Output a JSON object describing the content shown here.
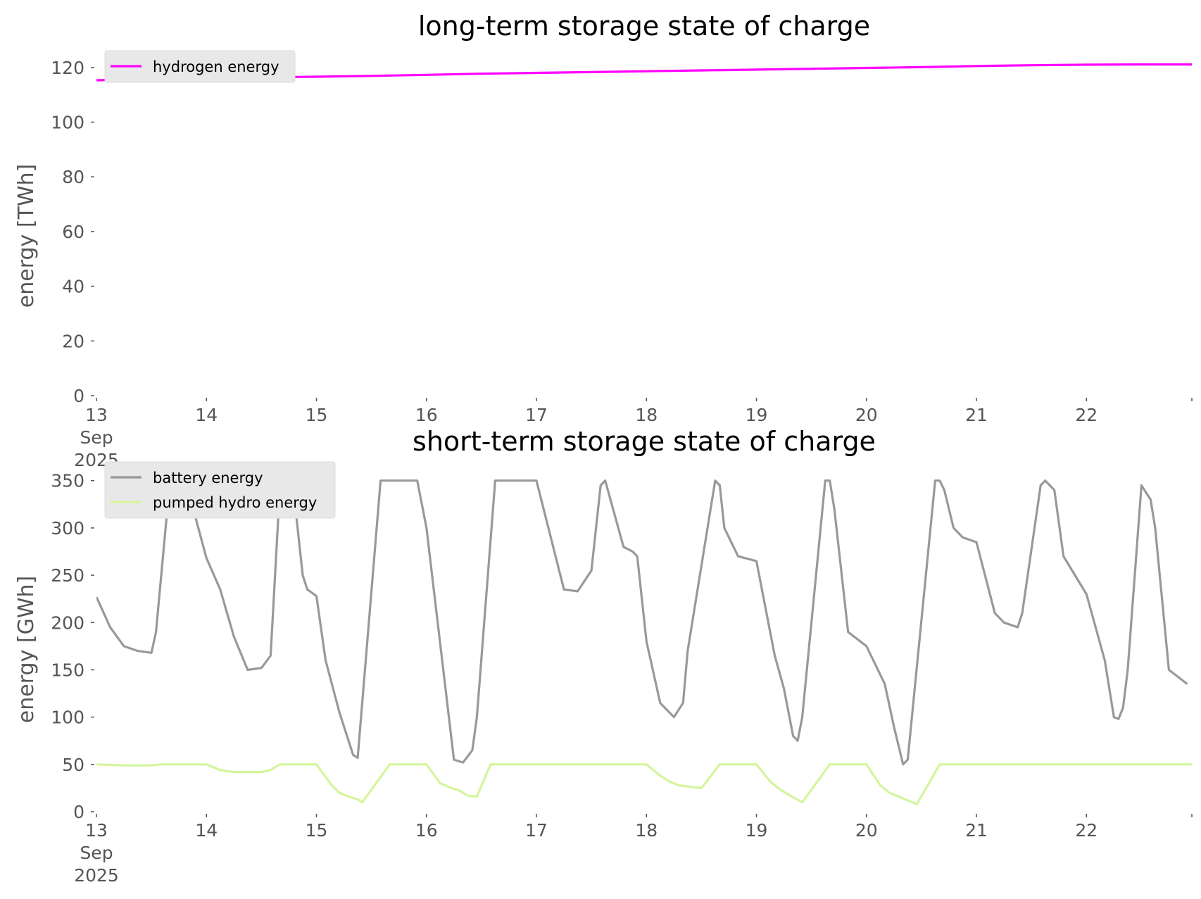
{
  "chart_data": [
    {
      "type": "line",
      "title": "long-term storage state of charge",
      "ylabel": "energy [TWh]",
      "xlabel": "",
      "ylim": [
        0,
        122
      ],
      "yticks": [
        "0",
        "20",
        "40",
        "60",
        "80",
        "100",
        "120"
      ],
      "xlim": [
        "2025-09-13",
        "2025-09-22 23:00"
      ],
      "xticks": [
        "13\nSep\n2025",
        "14",
        "15",
        "16",
        "17",
        "18",
        "19",
        "20",
        "21",
        "22"
      ],
      "grid": false,
      "legend": "top-left",
      "series": [
        {
          "name": "hydrogen energy",
          "color": "#ff00ff",
          "x": [
            "2025-09-13",
            "2025-09-13 12:00",
            "2025-09-14",
            "2025-09-14 12:00",
            "2025-09-15",
            "2025-09-15 12:00",
            "2025-09-16",
            "2025-09-16 12:00",
            "2025-09-17",
            "2025-09-17 12:00",
            "2025-09-18",
            "2025-09-18 12:00",
            "2025-09-19",
            "2025-09-19 12:00",
            "2025-09-20",
            "2025-09-20 12:00",
            "2025-09-21",
            "2025-09-21 12:00",
            "2025-09-22",
            "2025-09-22 12:00",
            "2025-09-22 23:00"
          ],
          "values": [
            115.3,
            115.8,
            116.2,
            116.4,
            116.6,
            116.9,
            117.3,
            117.7,
            118.0,
            118.3,
            118.6,
            118.9,
            119.2,
            119.5,
            119.8,
            120.1,
            120.5,
            120.8,
            121.0,
            121.1,
            121.1
          ]
        }
      ]
    },
    {
      "type": "line",
      "title": "short-term storage state of charge",
      "ylabel": "energy [GWh]",
      "xlabel": "",
      "ylim": [
        0,
        358
      ],
      "yticks": [
        "0",
        "50",
        "100",
        "150",
        "200",
        "250",
        "300",
        "350"
      ],
      "xlim": [
        "2025-09-13",
        "2025-09-22 23:00"
      ],
      "xticks": [
        "13\nSep\n2025",
        "14",
        "15",
        "16",
        "17",
        "18",
        "19",
        "20",
        "21",
        "22"
      ],
      "grid": false,
      "legend": "top-left",
      "series": [
        {
          "name": "battery energy",
          "color": "#999999",
          "x": [
            "2025-09-13",
            "2025-09-13 03:00",
            "2025-09-13 06:00",
            "2025-09-13 09:00",
            "2025-09-13 12:00",
            "2025-09-13 13:00",
            "2025-09-13 16:00",
            "2025-09-13 18:00",
            "2025-09-13 20:00",
            "2025-09-14",
            "2025-09-14 03:00",
            "2025-09-14 06:00",
            "2025-09-14 09:00",
            "2025-09-14 12:00",
            "2025-09-14 14:00",
            "2025-09-14 16:00",
            "2025-09-14 17:00",
            "2025-09-14 19:00",
            "2025-09-14 21:00",
            "2025-09-14 22:00",
            "2025-09-15",
            "2025-09-15 02:00",
            "2025-09-15 05:00",
            "2025-09-15 08:00",
            "2025-09-15 09:00",
            "2025-09-15 14:00",
            "2025-09-15 15:00",
            "2025-09-15 22:00",
            "2025-09-16",
            "2025-09-16 06:00",
            "2025-09-16 08:00",
            "2025-09-16 10:00",
            "2025-09-16 11:00",
            "2025-09-16 15:00",
            "2025-09-16 17:00",
            "2025-09-16 22:00",
            "2025-09-17",
            "2025-09-17 06:00",
            "2025-09-17 09:00",
            "2025-09-17 12:00",
            "2025-09-17 14:00",
            "2025-09-17 15:00",
            "2025-09-17 19:00",
            "2025-09-17 21:00",
            "2025-09-17 22:00",
            "2025-09-18",
            "2025-09-18 03:00",
            "2025-09-18 06:00",
            "2025-09-18 08:00",
            "2025-09-18 09:00",
            "2025-09-18 15:00",
            "2025-09-18 16:00",
            "2025-09-18 17:00",
            "2025-09-18 20:00",
            "2025-09-19",
            "2025-09-19 04:00",
            "2025-09-19 06:00",
            "2025-09-19 08:00",
            "2025-09-19 09:00",
            "2025-09-19 10:00",
            "2025-09-19 15:00",
            "2025-09-19 16:00",
            "2025-09-19 17:00",
            "2025-09-19 20:00",
            "2025-09-20",
            "2025-09-20 04:00",
            "2025-09-20 06:00",
            "2025-09-20 08:00",
            "2025-09-20 09:00",
            "2025-09-20 15:00",
            "2025-09-20 16:00",
            "2025-09-20 17:00",
            "2025-09-20 19:00",
            "2025-09-20 21:00",
            "2025-09-21",
            "2025-09-21 04:00",
            "2025-09-21 06:00",
            "2025-09-21 09:00",
            "2025-09-21 10:00",
            "2025-09-21 14:00",
            "2025-09-21 15:00",
            "2025-09-21 17:00",
            "2025-09-21 19:00",
            "2025-09-22",
            "2025-09-22 04:00",
            "2025-09-22 06:00",
            "2025-09-22 07:00",
            "2025-09-22 08:00",
            "2025-09-22 09:00",
            "2025-09-22 12:00",
            "2025-09-22 14:00",
            "2025-09-22 15:00",
            "2025-09-22 18:00",
            "2025-09-22 22:00"
          ],
          "values": [
            227,
            195,
            175,
            170,
            168,
            190,
            348,
            350,
            340,
            268,
            235,
            185,
            150,
            152,
            165,
            340,
            350,
            340,
            250,
            235,
            228,
            160,
            105,
            60,
            57,
            350,
            350,
            350,
            300,
            55,
            52,
            65,
            100,
            350,
            350,
            350,
            350,
            235,
            233,
            255,
            345,
            350,
            280,
            275,
            270,
            180,
            115,
            100,
            115,
            170,
            350,
            345,
            300,
            270,
            265,
            165,
            130,
            80,
            75,
            100,
            350,
            350,
            320,
            190,
            175,
            135,
            90,
            50,
            55,
            350,
            350,
            340,
            300,
            290,
            285,
            210,
            200,
            195,
            210,
            345,
            350,
            340,
            270,
            230,
            160,
            100,
            98,
            110,
            150,
            345,
            330,
            300,
            150,
            135
          ]
        },
        {
          "name": "pumped hydro energy",
          "color": "#d4f59c",
          "x": [
            "2025-09-13",
            "2025-09-13 06:00",
            "2025-09-13 12:00",
            "2025-09-13 14:00",
            "2025-09-14",
            "2025-09-14 03:00",
            "2025-09-14 06:00",
            "2025-09-14 12:00",
            "2025-09-14 14:00",
            "2025-09-14 16:00",
            "2025-09-15",
            "2025-09-15 03:00",
            "2025-09-15 05:00",
            "2025-09-15 07:00",
            "2025-09-15 09:00",
            "2025-09-15 10:00",
            "2025-09-15 16:00",
            "2025-09-16",
            "2025-09-16 03:00",
            "2025-09-16 06:00",
            "2025-09-16 07:00",
            "2025-09-16 09:00",
            "2025-09-16 11:00",
            "2025-09-16 14:00",
            "2025-09-17",
            "2025-09-18",
            "2025-09-18 03:00",
            "2025-09-18 05:00",
            "2025-09-18 07:00",
            "2025-09-18 10:00",
            "2025-09-18 12:00",
            "2025-09-18 16:00",
            "2025-09-19",
            "2025-09-19 03:00",
            "2025-09-19 05:00",
            "2025-09-19 07:00",
            "2025-09-19 10:00",
            "2025-09-19 16:00",
            "2025-09-20",
            "2025-09-20 03:00",
            "2025-09-20 05:00",
            "2025-09-20 07:00",
            "2025-09-20 09:00",
            "2025-09-20 11:00",
            "2025-09-20 16:00",
            "2025-09-21",
            "2025-09-22",
            "2025-09-22 12:00",
            "2025-09-22 23:00"
          ],
          "values": [
            50,
            49,
            49,
            50,
            50,
            44,
            42,
            42,
            44,
            50,
            50,
            30,
            20,
            16,
            13,
            10,
            50,
            50,
            30,
            24,
            23,
            17,
            16,
            50,
            50,
            50,
            38,
            32,
            28,
            26,
            25,
            50,
            50,
            32,
            24,
            18,
            10,
            50,
            50,
            28,
            20,
            16,
            12,
            8,
            50,
            50,
            50,
            50,
            50
          ]
        }
      ]
    }
  ]
}
